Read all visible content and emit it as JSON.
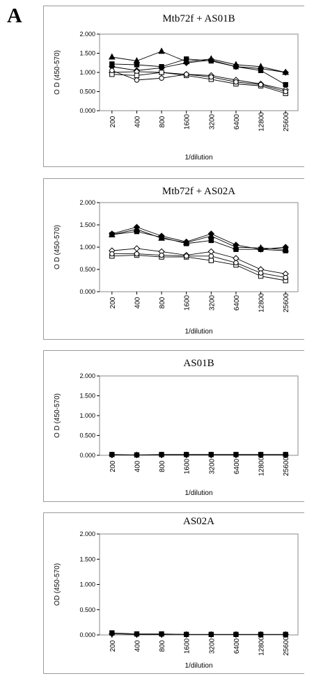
{
  "panel_letter": "A",
  "chart_data": [
    {
      "type": "line",
      "title": "Mtb72f + AS01B",
      "xlabel": "1/dilution",
      "ylabel": "O D (450-570)",
      "categories": [
        "200",
        "400",
        "800",
        "1600",
        "3200",
        "6400",
        "12800",
        "25600"
      ],
      "yticks": [
        "0.000",
        "0.500",
        "1.000",
        "1.500",
        "2.000"
      ],
      "ylim": [
        0,
        2
      ],
      "grid": false,
      "series": [
        {
          "marker": "filled-triangle",
          "values": [
            1.4,
            1.3,
            1.55,
            1.28,
            1.35,
            1.2,
            1.15,
            1.0
          ]
        },
        {
          "marker": "filled-square",
          "values": [
            1.22,
            1.2,
            1.15,
            1.35,
            1.3,
            1.15,
            1.05,
            0.68
          ]
        },
        {
          "marker": "filled-diamond",
          "values": [
            1.15,
            1.05,
            1.12,
            1.25,
            1.32,
            1.15,
            1.1,
            1.0
          ]
        },
        {
          "marker": "open-diamond",
          "values": [
            1.0,
            1.02,
            1.0,
            0.95,
            0.92,
            0.8,
            0.7,
            0.55
          ]
        },
        {
          "marker": "open-square",
          "values": [
            0.95,
            0.92,
            1.0,
            0.92,
            0.82,
            0.7,
            0.65,
            0.45
          ]
        },
        {
          "marker": "open-circle",
          "values": [
            1.05,
            0.8,
            0.85,
            0.95,
            0.88,
            0.75,
            0.68,
            0.5
          ]
        }
      ]
    },
    {
      "type": "line",
      "title": "Mtb72f + AS02A",
      "xlabel": "1/dilution",
      "ylabel": "O D (450-570)",
      "categories": [
        "200",
        "400",
        "800",
        "1600",
        "3200",
        "6400",
        "12800",
        "25600"
      ],
      "yticks": [
        "0.000",
        "0.500",
        "1.000",
        "1.500",
        "2.000"
      ],
      "ylim": [
        0,
        2
      ],
      "grid": false,
      "series": [
        {
          "marker": "filled-diamond",
          "values": [
            1.3,
            1.45,
            1.25,
            1.12,
            1.3,
            1.05,
            0.95,
            1.0
          ]
        },
        {
          "marker": "filled-triangle",
          "values": [
            1.28,
            1.4,
            1.2,
            1.1,
            1.25,
            1.0,
            0.98,
            0.95
          ]
        },
        {
          "marker": "filled-square",
          "values": [
            1.28,
            1.35,
            1.22,
            1.08,
            1.15,
            0.95,
            0.95,
            0.92
          ]
        },
        {
          "marker": "open-diamond",
          "values": [
            0.92,
            0.97,
            0.9,
            0.82,
            0.9,
            0.75,
            0.5,
            0.4
          ]
        },
        {
          "marker": "open-square",
          "values": [
            0.8,
            0.82,
            0.78,
            0.78,
            0.7,
            0.6,
            0.35,
            0.25
          ]
        },
        {
          "marker": "open-circle",
          "values": [
            0.85,
            0.85,
            0.82,
            0.8,
            0.8,
            0.65,
            0.42,
            0.32
          ]
        }
      ]
    },
    {
      "type": "line",
      "title": "AS01B",
      "xlabel": "1/dilution",
      "ylabel": "O D (450-570)",
      "categories": [
        "200",
        "400",
        "800",
        "1600",
        "3200",
        "6400",
        "12800",
        "25600"
      ],
      "yticks": [
        "0.000",
        "0.500",
        "1.000",
        "1.500",
        "2.000"
      ],
      "ylim": [
        0,
        2
      ],
      "grid": false,
      "series": [
        {
          "marker": "filled-square",
          "values": [
            0.02,
            0.01,
            0.02,
            0.02,
            0.02,
            0.02,
            0.02,
            0.02
          ]
        },
        {
          "marker": "filled-diamond",
          "values": [
            0.01,
            0.01,
            0.01,
            0.01,
            0.01,
            0.01,
            0.01,
            0.01
          ]
        }
      ]
    },
    {
      "type": "line",
      "title": "AS02A",
      "xlabel": "1/dilution",
      "ylabel": "OD (450-570)",
      "categories": [
        "200",
        "400",
        "800",
        "1600",
        "3200",
        "6400",
        "12800",
        "25600"
      ],
      "yticks": [
        "0.000",
        "0.500",
        "1.000",
        "1.500",
        "2.000"
      ],
      "ylim": [
        0,
        2
      ],
      "grid": false,
      "series": [
        {
          "marker": "filled-square",
          "values": [
            0.04,
            0.02,
            0.02,
            0.01,
            0.01,
            0.01,
            0.01,
            0.01
          ]
        },
        {
          "marker": "filled-diamond",
          "values": [
            0.02,
            0.01,
            0.01,
            0.01,
            0.01,
            0.01,
            0.01,
            0.01
          ]
        }
      ]
    }
  ]
}
